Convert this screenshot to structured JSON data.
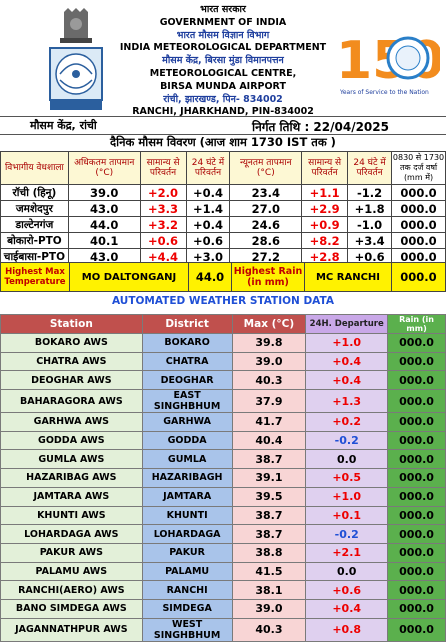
{
  "header": {
    "line1": "भारत सरकार",
    "line2": "GOVERNMENT OF INDIA",
    "line3": "भारत मौसम विज्ञान विभाग",
    "line4": "INDIA METEOROLOGICAL DEPARTMENT",
    "line5": "मौसम केंद्र, बिरसा मुंडा विमानपत्तन",
    "line6": "METEOROLOGICAL CENTRE,",
    "line7": "BIRSA MUNDA AIRPORT",
    "line8": "रांची, झारखण्ड, पिन- 834002",
    "line9": "RANCHI, JHARKHAND, PIN-834002",
    "logo_number": "150",
    "logo_tagline": "Years of Service to the Nation"
  },
  "title_row": {
    "centre": "मौसम केंद्र, रांची",
    "issue": "निर्गत तिथि : 22/04/2025"
  },
  "report_title": "दैनिक मौसम विवरण (आज शाम 1730 IST तक )",
  "daily_table": {
    "headers": [
      "विभागीय वेधशाला",
      "अधिकतम तापमान (°C)",
      "सामान्य से परिवर्तन",
      "24 घंटे में परिवर्तन",
      "न्यूनतम तापमान (°C)",
      "सामान्य से परिवर्तन",
      "24 घंटे में परिवर्तन",
      "0830 से 1730 तक दर्ज वर्षा (mm में)"
    ],
    "rows": [
      {
        "station": "रॉची (हिनू)",
        "max": "39.0",
        "max_dep": "+2.0",
        "max_24": "+0.4",
        "min": "23.4",
        "min_dep": "+1.1",
        "min_24": "-1.2",
        "rain": "000.0"
      },
      {
        "station": "जमशेदपुर",
        "max": "43.0",
        "max_dep": "+3.3",
        "max_24": "+1.4",
        "min": "27.0",
        "min_dep": "+2.9",
        "min_24": "+1.8",
        "rain": "000.0"
      },
      {
        "station": "डाल्टेनगंज",
        "max": "44.0",
        "max_dep": "+3.2",
        "max_24": "+0.4",
        "min": "24.6",
        "min_dep": "+0.9",
        "min_24": "-1.0",
        "rain": "000.0"
      },
      {
        "station": "बोकारो-PTO",
        "max": "40.1",
        "max_dep": "+0.6",
        "max_24": "+0.6",
        "min": "28.6",
        "min_dep": "+8.2",
        "min_24": "+3.4",
        "rain": "000.0"
      },
      {
        "station": "चाईबासा-PTO",
        "max": "43.0",
        "max_dep": "+4.4",
        "max_24": "+3.0",
        "min": "27.2",
        "min_dep": "+2.8",
        "min_24": "+0.6",
        "rain": "000.0"
      }
    ]
  },
  "highlights": {
    "max_label": "Highest Max Temperature",
    "max_station": "MO DALTONGANJ",
    "max_value": "44.0",
    "rain_label": "Highest Rain (in mm)",
    "rain_station": "MC RANCHI",
    "rain_value": "000.0"
  },
  "aws_title": "AUTOMATED WEATHER STATION DATA",
  "aws_table": {
    "headers": [
      "Station",
      "District",
      "Max (°C)",
      "24H. Departure",
      "Rain (in mm)"
    ],
    "rows": [
      {
        "station": "BOKARO AWS",
        "district": "BOKARO",
        "max": "39.8",
        "dep": "+1.0",
        "rain": "000.0"
      },
      {
        "station": "CHATRA AWS",
        "district": "CHATRA",
        "max": "39.0",
        "dep": "+0.4",
        "rain": "000.0"
      },
      {
        "station": "DEOGHAR AWS",
        "district": "DEOGHAR",
        "max": "40.3",
        "dep": "+0.4",
        "rain": "000.0"
      },
      {
        "station": "BAHARAGORA AWS",
        "district": "EAST SINGHBHUM",
        "max": "37.9",
        "dep": "+1.3",
        "rain": "000.0"
      },
      {
        "station": "GARHWA AWS",
        "district": "GARHWA",
        "max": "41.7",
        "dep": "+0.2",
        "rain": "000.0"
      },
      {
        "station": "GODDA AWS",
        "district": "GODDA",
        "max": "40.4",
        "dep": "-0.2",
        "rain": "000.0"
      },
      {
        "station": "GUMLA AWS",
        "district": "GUMLA",
        "max": "38.7",
        "dep": "0.0",
        "rain": "000.0"
      },
      {
        "station": "HAZARIBAG AWS",
        "district": "HAZARIBAGH",
        "max": "39.1",
        "dep": "+0.5",
        "rain": "000.0"
      },
      {
        "station": "JAMTARA AWS",
        "district": "JAMTARA",
        "max": "39.5",
        "dep": "+1.0",
        "rain": "000.0"
      },
      {
        "station": "KHUNTI AWS",
        "district": "KHUNTI",
        "max": "38.7",
        "dep": "+0.1",
        "rain": "000.0"
      },
      {
        "station": "LOHARDAGA AWS",
        "district": "LOHARDAGA",
        "max": "38.7",
        "dep": "-0.2",
        "rain": "000.0"
      },
      {
        "station": "PAKUR AWS",
        "district": "PAKUR",
        "max": "38.8",
        "dep": "+2.1",
        "rain": "000.0"
      },
      {
        "station": "PALAMU AWS",
        "district": "PALAMU",
        "max": "41.5",
        "dep": "0.0",
        "rain": "000.0"
      },
      {
        "station": "RANCHI(AERO) AWS",
        "district": "RANCHI",
        "max": "38.1",
        "dep": "+0.6",
        "rain": "000.0"
      },
      {
        "station": "BANO SIMDEGA AWS",
        "district": "SIMDEGA",
        "max": "39.0",
        "dep": "+0.4",
        "rain": "000.0"
      },
      {
        "station": "JAGANNATHPUR AWS",
        "district": "WEST SINGHBHUM",
        "max": "40.3",
        "dep": "+0.8",
        "rain": "000.0"
      }
    ]
  },
  "colors": {
    "positive": "#e00000",
    "negative": "#1f4fd6",
    "header_red": "#c0504d",
    "rain_green": "#5bb04d",
    "highlight_yellow": "#fff200"
  }
}
